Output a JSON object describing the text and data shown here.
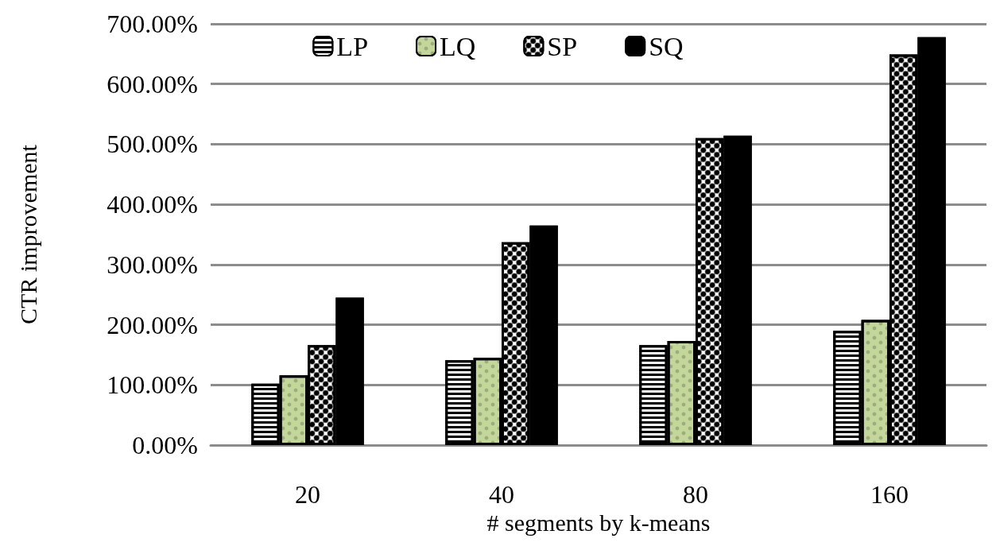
{
  "chart_data": {
    "type": "bar",
    "xlabel": "# segments by k-means",
    "ylabel": "CTR improvement",
    "categories": [
      "20",
      "40",
      "80",
      "160"
    ],
    "series": [
      {
        "name": "LP",
        "color": "#ffffff",
        "values": [
          102,
          141,
          166,
          190
        ]
      },
      {
        "name": "LQ",
        "color": "#c4d79b",
        "values": [
          116,
          145,
          173,
          208
        ]
      },
      {
        "name": "SP",
        "color": "#ffffff",
        "values": [
          166,
          337,
          510,
          649
        ]
      },
      {
        "name": "SQ",
        "color": "#000000",
        "values": [
          245,
          365,
          514,
          678
        ]
      }
    ],
    "ylim": [
      0,
      700
    ],
    "yticks": [
      {
        "value": 0,
        "label": "0.00%"
      },
      {
        "value": 100,
        "label": "100.00%"
      },
      {
        "value": 200,
        "label": "200.00%"
      },
      {
        "value": 300,
        "label": "300.00%"
      },
      {
        "value": 400,
        "label": "400.00%"
      },
      {
        "value": 500,
        "label": "500.00%"
      },
      {
        "value": 600,
        "label": "600.00%"
      },
      {
        "value": 700,
        "label": "700.00%"
      }
    ],
    "grid": "y",
    "legend": "top"
  }
}
